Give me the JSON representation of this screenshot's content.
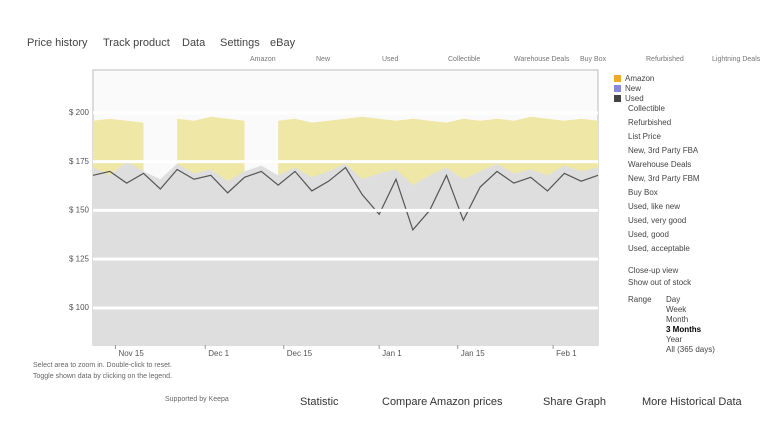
{
  "tabs": [
    "Price history",
    "Track product",
    "Data",
    "Settings",
    "eBay"
  ],
  "legend_top": [
    "Amazon",
    "New",
    "Used",
    "Collectible",
    "Warehouse Deals",
    "Buy Box",
    "Refurbished",
    "Lightning Deals"
  ],
  "chart_data": {
    "type": "area",
    "x": [
      0,
      3,
      6,
      9,
      12,
      15,
      18,
      21,
      24,
      27,
      30,
      33,
      36,
      39,
      42,
      45,
      48,
      51,
      54,
      57,
      60,
      63,
      66,
      69,
      72,
      75,
      78,
      81,
      84,
      87,
      90
    ],
    "xlim": [
      0,
      90
    ],
    "xticks": [
      {
        "value": 4,
        "label": "Nov 15"
      },
      {
        "value": 20,
        "label": "Dec 1"
      },
      {
        "value": 34,
        "label": "Dec 15"
      },
      {
        "value": 51,
        "label": "Jan 1"
      },
      {
        "value": 65,
        "label": "Jan 15"
      },
      {
        "value": 82,
        "label": "Feb 1"
      }
    ],
    "ylim": [
      81,
      222
    ],
    "yticks": [
      {
        "value": 200,
        "label": "$ 200"
      },
      {
        "value": 175,
        "label": "$ 175"
      },
      {
        "value": 150,
        "label": "$ 150"
      },
      {
        "value": 125,
        "label": "$ 125"
      },
      {
        "value": 100,
        "label": "$ 100"
      }
    ],
    "series": [
      {
        "name": "Amazon",
        "color": "#efe7a6",
        "values": [
          196,
          197,
          196,
          195,
          null,
          197,
          196,
          198,
          197,
          196,
          null,
          196,
          197,
          195,
          196,
          197,
          198,
          197,
          196,
          197,
          196,
          195,
          197,
          196,
          197,
          196,
          198,
          197,
          196,
          197,
          196
        ]
      },
      {
        "name": "New",
        "color": "#dedede",
        "values": [
          172,
          168,
          175,
          170,
          166,
          174,
          169,
          171,
          165,
          170,
          173,
          168,
          172,
          167,
          170,
          174,
          166,
          169,
          171,
          163,
          168,
          172,
          166,
          170,
          174,
          169,
          171,
          168,
          173,
          170,
          172
        ]
      },
      {
        "name": "Used",
        "color": "#555555",
        "values": [
          168,
          170,
          164,
          169,
          161,
          171,
          166,
          168,
          159,
          167,
          170,
          163,
          170,
          160,
          165,
          172,
          158,
          148,
          166,
          140,
          150,
          168,
          145,
          162,
          170,
          164,
          167,
          160,
          169,
          165,
          168
        ]
      }
    ]
  },
  "sidebar": {
    "legend": [
      {
        "name": "Amazon",
        "color": "#f0a830"
      },
      {
        "name": "New",
        "color": "#8888dd"
      },
      {
        "name": "Used",
        "color": "#444444"
      }
    ],
    "items": [
      "Collectible",
      "Refurbished",
      "List Price",
      "New, 3rd Party FBA",
      "Warehouse Deals",
      "New, 3rd Party FBM",
      "Buy Box",
      "Used, like new",
      "Used, very good",
      "Used, good",
      "Used, acceptable"
    ],
    "options": [
      "Close-up view",
      "Show out of stock"
    ],
    "range_label": "Range",
    "ranges": [
      "Day",
      "Week",
      "Month",
      "3 Months",
      "Year",
      "All (365 days)"
    ]
  },
  "footer_notes": [
    "Select area to zoom in. Double-click to reset.",
    "Toggle shown data by clicking on the legend."
  ],
  "credit": "Supported by Keepa",
  "actions": [
    "Statistic",
    "Compare Amazon prices",
    "Share Graph",
    "More Historical Data"
  ]
}
